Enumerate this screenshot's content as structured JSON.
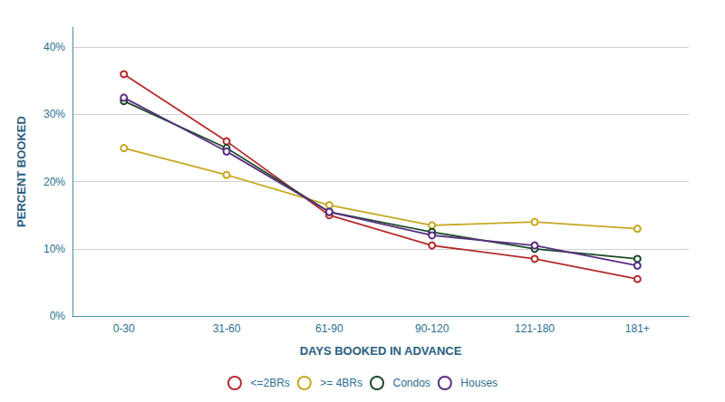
{
  "chart_data": {
    "type": "line",
    "xlabel": "DAYS BOOKED IN ADVANCE",
    "ylabel": "PERCENT BOOKED",
    "categories": [
      "0-30",
      "31-60",
      "61-90",
      "90-120",
      "121-180",
      "181+"
    ],
    "series": [
      {
        "name": "<=2BRs",
        "color": "#b52b2b",
        "marker": "circle",
        "values": [
          0.36,
          0.26,
          0.15,
          0.105,
          0.085,
          0.055
        ]
      },
      {
        "name": ">= 4BRs",
        "color": "#c8a820",
        "marker": "circle",
        "values": [
          0.25,
          0.21,
          0.165,
          0.135,
          0.14,
          0.13
        ]
      },
      {
        "name": "Condos",
        "color": "#1a4a2a",
        "marker": "circle",
        "values": [
          0.32,
          0.25,
          0.155,
          0.125,
          0.1,
          0.085
        ]
      },
      {
        "name": "Houses",
        "color": "#5a2d82",
        "marker": "circle",
        "values": [
          0.325,
          0.245,
          0.155,
          0.12,
          0.105,
          0.075
        ]
      }
    ],
    "ylim": [
      0,
      0.43
    ],
    "yticks": [
      {
        "value": 0.0,
        "label": "0%"
      },
      {
        "value": 0.1,
        "label": "10%"
      },
      {
        "value": 0.2,
        "label": "20%"
      },
      {
        "value": 0.3,
        "label": "30%"
      },
      {
        "value": 0.4,
        "label": "40%"
      }
    ],
    "grid": true,
    "legend": "bottom"
  }
}
